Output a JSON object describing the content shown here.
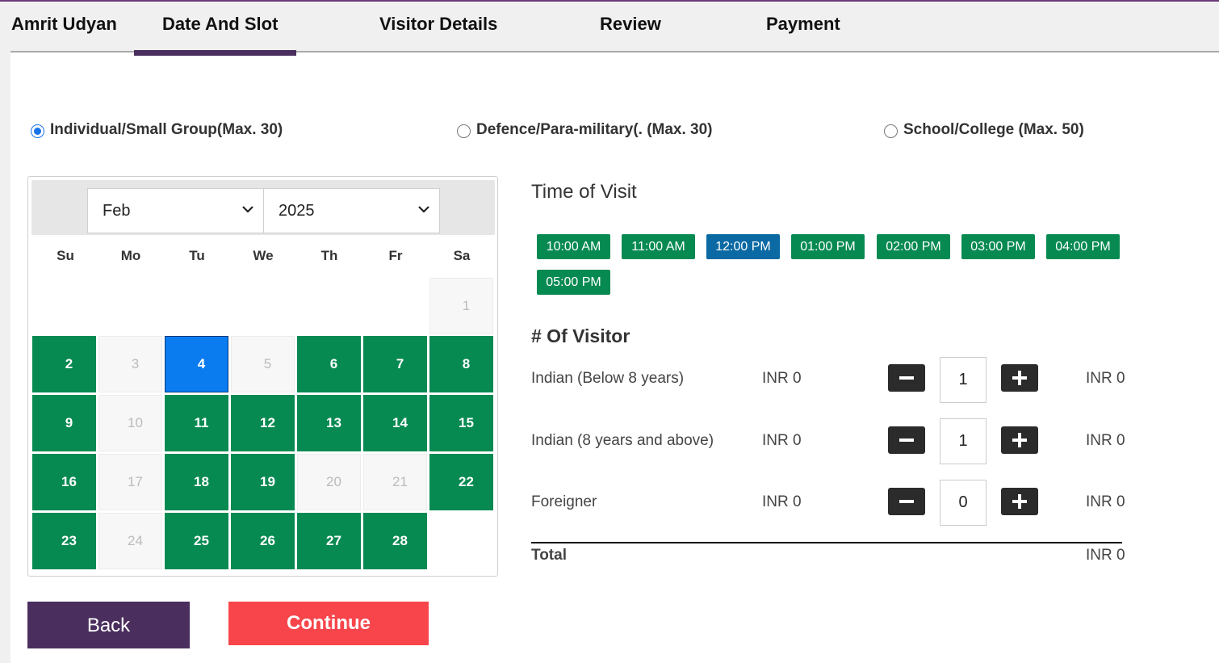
{
  "steps": {
    "brand": "Amrit Udyan",
    "items": [
      "Date And Slot",
      "Visitor Details",
      "Review",
      "Payment"
    ],
    "active": "Date And Slot"
  },
  "group_types": {
    "options": [
      "Individual/Small Group(Max. 30)",
      "Defence/Para-military(. (Max. 30)",
      "School/College (Max. 50)"
    ],
    "selected": "Individual/Small Group(Max. 30)"
  },
  "calendar": {
    "month": "Feb",
    "year": "2025",
    "weekdays": [
      "Su",
      "Mo",
      "Tu",
      "We",
      "Th",
      "Fr",
      "Sa"
    ],
    "days": [
      {
        "d": "1",
        "s": "dis"
      },
      {
        "d": "2",
        "s": "avail"
      },
      {
        "d": "3",
        "s": "dis"
      },
      {
        "d": "4",
        "s": "sel"
      },
      {
        "d": "5",
        "s": "dis"
      },
      {
        "d": "6",
        "s": "avail"
      },
      {
        "d": "7",
        "s": "avail"
      },
      {
        "d": "8",
        "s": "avail"
      },
      {
        "d": "9",
        "s": "avail"
      },
      {
        "d": "10",
        "s": "dis"
      },
      {
        "d": "11",
        "s": "avail"
      },
      {
        "d": "12",
        "s": "avail"
      },
      {
        "d": "13",
        "s": "avail"
      },
      {
        "d": "14",
        "s": "avail"
      },
      {
        "d": "15",
        "s": "avail"
      },
      {
        "d": "16",
        "s": "avail"
      },
      {
        "d": "17",
        "s": "dis"
      },
      {
        "d": "18",
        "s": "avail"
      },
      {
        "d": "19",
        "s": "avail"
      },
      {
        "d": "20",
        "s": "dis"
      },
      {
        "d": "21",
        "s": "dis"
      },
      {
        "d": "22",
        "s": "avail"
      },
      {
        "d": "23",
        "s": "avail"
      },
      {
        "d": "24",
        "s": "dis"
      },
      {
        "d": "25",
        "s": "avail"
      },
      {
        "d": "26",
        "s": "avail"
      },
      {
        "d": "27",
        "s": "avail"
      },
      {
        "d": "28",
        "s": "avail"
      }
    ],
    "selected_day": "4"
  },
  "time_of_visit": {
    "title": "Time of Visit",
    "slots": [
      "10:00 AM",
      "11:00 AM",
      "12:00 PM",
      "01:00 PM",
      "02:00 PM",
      "03:00 PM",
      "04:00 PM",
      "05:00 PM"
    ],
    "selected": "12:00 PM"
  },
  "visitors": {
    "title": "# Of Visitor",
    "rows": [
      {
        "label": "Indian (Below 8 years)",
        "price": "INR 0",
        "qty": "1",
        "total": "INR 0"
      },
      {
        "label": "Indian (8 years and above)",
        "price": "INR 0",
        "qty": "1",
        "total": "INR 0"
      },
      {
        "label": "Foreigner",
        "price": "INR 0",
        "qty": "0",
        "total": "INR 0"
      }
    ],
    "total_label": "Total",
    "total_value": "INR 0"
  },
  "buttons": {
    "back": "Back",
    "continue": "Continue"
  },
  "colors": {
    "available_day": "#078a52",
    "selected_day": "#0a7cf0",
    "slot": "#078a52",
    "slot_selected": "#0b69a3",
    "back_button": "#4a2f5e",
    "continue_button": "#f7454b"
  },
  "icons": {
    "dropdown": "chevron-down-icon",
    "decrement": "minus-icon",
    "increment": "plus-icon"
  }
}
